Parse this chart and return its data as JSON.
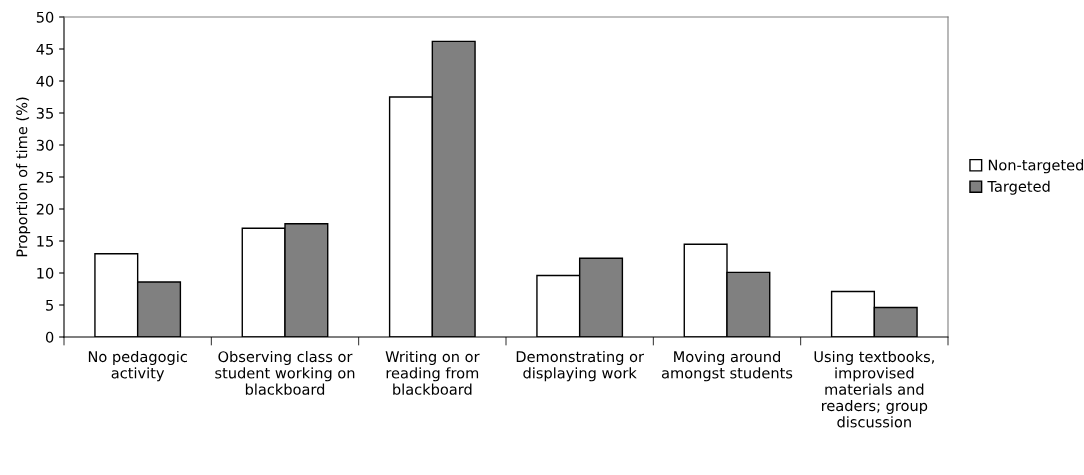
{
  "chart_data": {
    "type": "bar",
    "ylabel": "Proportion of time (%)",
    "categories": [
      "No pedagogic\nactivity",
      "Observing class or\nstudent working on\nblackboard",
      "Writing on or\nreading from\nblackboard",
      "Demonstrating or\ndisplaying work",
      "Moving around\namongst students",
      "Using textbooks,\nimprovised\nmaterials and\nreaders; group\ndiscussion"
    ],
    "series": [
      {
        "name": "Non-targeted",
        "color": "#ffffff",
        "values": [
          13.0,
          17.0,
          37.5,
          9.6,
          14.5,
          7.1
        ]
      },
      {
        "name": "Targeted",
        "color": "#808080",
        "values": [
          8.6,
          17.7,
          46.2,
          12.3,
          10.1,
          4.6
        ]
      }
    ],
    "ylim": [
      0,
      50
    ],
    "yticks": [
      0,
      5,
      10,
      15,
      20,
      25,
      30,
      35,
      40,
      45,
      50
    ],
    "grid": false,
    "legend": "right"
  }
}
